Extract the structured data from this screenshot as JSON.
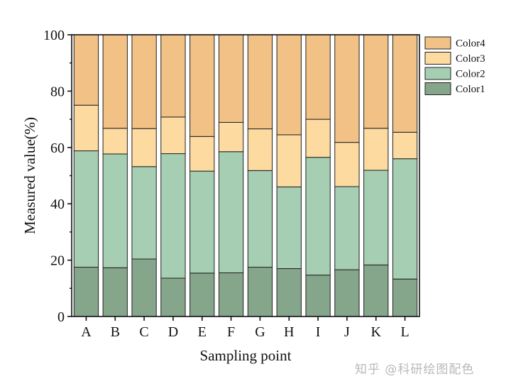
{
  "watermark": "知乎 @科研绘图配色",
  "chart_data": {
    "type": "bar",
    "stacked": true,
    "categories": [
      "A",
      "B",
      "C",
      "D",
      "E",
      "F",
      "G",
      "H",
      "I",
      "J",
      "K",
      "L"
    ],
    "series": [
      {
        "name": "Color1",
        "color": "#85A68A",
        "values": [
          17.5,
          17.3,
          20.4,
          13.6,
          15.4,
          15.5,
          17.5,
          17.0,
          14.7,
          16.6,
          18.3,
          13.3
        ]
      },
      {
        "name": "Color2",
        "color": "#A5CEB2",
        "values": [
          41.3,
          40.4,
          32.8,
          44.2,
          36.2,
          43.0,
          34.3,
          29.0,
          41.8,
          29.5,
          33.6,
          42.7
        ]
      },
      {
        "name": "Color3",
        "color": "#FDDAA0",
        "values": [
          16.2,
          9.1,
          13.5,
          13.0,
          12.3,
          10.4,
          14.8,
          18.5,
          13.5,
          15.7,
          14.9,
          9.4
        ]
      },
      {
        "name": "Color4",
        "color": "#F1C185",
        "values": [
          25.0,
          33.2,
          33.3,
          29.2,
          36.1,
          31.1,
          33.4,
          35.5,
          30.0,
          38.2,
          33.2,
          34.6
        ]
      }
    ],
    "xlabel": "Sampling point",
    "ylabel": "Measured value(%)",
    "ylim": [
      0,
      100
    ],
    "yticks": [
      0,
      20,
      40,
      60,
      80,
      100
    ],
    "legend_order": [
      "Color4",
      "Color3",
      "Color2",
      "Color1"
    ],
    "legend_position": "right",
    "grid": false
  }
}
